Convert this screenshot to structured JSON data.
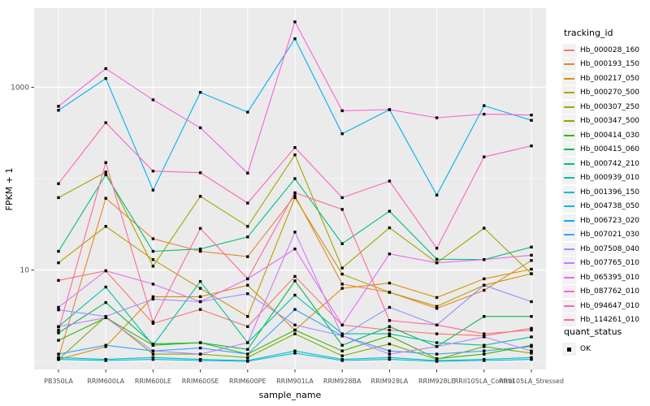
{
  "figure": {
    "background": "#FFFFFF",
    "panel_background": "#EBEBEB",
    "grid_color": "#FFFFFF",
    "tick_color": "#333333",
    "axis_text_color": "#4D4D4D",
    "title_color": "#000000",
    "legend_key_fill": "#F2F2F2",
    "point_color": "#000000"
  },
  "legend": {
    "title": "tracking_id"
  },
  "legend2": {
    "title": "quant_status",
    "items": [
      {
        "label": "OK",
        "shape": "filled-square",
        "color": "#000000"
      }
    ]
  },
  "chart_data": {
    "type": "line",
    "title": "",
    "xlabel": "sample_name",
    "ylabel": "FPKM + 1",
    "y_scale": "log10",
    "ylim": [
      1,
      7000
    ],
    "y_tick_values": [
      10,
      1000
    ],
    "y_tick_labels": [
      "10",
      "1000"
    ],
    "y_gridline_values": [
      1,
      10,
      100,
      1000
    ],
    "grid": true,
    "legend_position": "right",
    "point_shape": "filled-square",
    "categories": [
      "PB350LA",
      "RRIM600LA",
      "RRIM600LE",
      "RRIM600SE",
      "RRIM600PE",
      "RRIM901LA",
      "RRIM928BA",
      "RRIM928LA",
      "RRIM928LE",
      "RRII105LA_Control",
      "RRII105LA_Stressed"
    ],
    "series": [
      {
        "name": "Hb_000028_160",
        "color": "#F8766D",
        "values": [
          7.7,
          9.8,
          2.6,
          3.7,
          2.4,
          8.5,
          2.5,
          2.2,
          2.0,
          1.9,
          2.3
        ]
      },
      {
        "name": "Hb_000193_150",
        "color": "#EA8331",
        "values": [
          1.1,
          61,
          22,
          16,
          14,
          65,
          7.0,
          5.7,
          3.8,
          6.0,
          12.7
        ]
      },
      {
        "name": "Hb_000217_050",
        "color": "#D89000",
        "values": [
          1.05,
          1.45,
          5.1,
          5.1,
          6.8,
          2.2,
          6.3,
          7.2,
          5.0,
          8.0,
          10.2
        ]
      },
      {
        "name": "Hb_000270_500",
        "color": "#C09B00",
        "values": [
          12,
          30,
          13,
          6.3,
          3.1,
          62,
          9.0,
          5.7,
          4.0,
          6.8,
          9.1
        ]
      },
      {
        "name": "Hb_000307_250",
        "color": "#A3A500",
        "values": [
          62,
          118,
          11,
          64,
          30,
          182,
          10.5,
          29,
          12,
          28.7,
          9.1
        ]
      },
      {
        "name": "Hb_000347_500",
        "color": "#7CAE00",
        "values": [
          1.05,
          3.1,
          1.2,
          1.2,
          1.1,
          2.0,
          1.15,
          1.55,
          1.05,
          1.45,
          1.23
        ]
      },
      {
        "name": "Hb_000414_030",
        "color": "#39B600",
        "values": [
          1.7,
          3.0,
          1.5,
          1.6,
          1.2,
          2.2,
          1.3,
          1.9,
          1.07,
          1.2,
          1.5
        ]
      },
      {
        "name": "Hb_000415_060",
        "color": "#00BB4E",
        "values": [
          2.05,
          4.4,
          1.55,
          1.6,
          1.35,
          7.6,
          1.5,
          2.4,
          1.45,
          3.1,
          3.1
        ]
      },
      {
        "name": "Hb_000742_210",
        "color": "#00BF7D",
        "values": [
          16,
          110,
          16,
          17,
          23,
          100,
          19.4,
          44,
          13.1,
          13,
          17.8
        ]
      },
      {
        "name": "Hb_000939_010",
        "color": "#00C1A3",
        "values": [
          2.4,
          6.5,
          1.5,
          7.5,
          1.6,
          5.3,
          2.0,
          2.0,
          1.6,
          1.5,
          1.85
        ]
      },
      {
        "name": "Hb_001396_150",
        "color": "#00BFC4",
        "values": [
          1.1,
          1.05,
          1.1,
          1.05,
          1.02,
          1.3,
          1.05,
          1.1,
          1.02,
          1.05,
          1.1
        ]
      },
      {
        "name": "Hb_004738_050",
        "color": "#00BAE0",
        "values": [
          1.05,
          1.02,
          1.05,
          1.02,
          1.0,
          1.23,
          1.02,
          1.05,
          1.0,
          1.02,
          1.05
        ]
      },
      {
        "name": "Hb_006723_020",
        "color": "#00B0F6",
        "values": [
          560,
          1250,
          75,
          880,
          535,
          3400,
          310,
          570,
          66,
          630,
          435
        ]
      },
      {
        "name": "Hb_007021_030",
        "color": "#35A2FF",
        "values": [
          1.2,
          1.5,
          1.3,
          1.4,
          1.2,
          3.7,
          1.9,
          1.3,
          1.2,
          1.3,
          1.45
        ]
      },
      {
        "name": "Hb_007508_040",
        "color": "#9590FF",
        "values": [
          3.66,
          3.1,
          4.8,
          4.5,
          5.5,
          2.5,
          1.9,
          3.9,
          2.5,
          6.8,
          4.5
        ]
      },
      {
        "name": "Hb_007765_010",
        "color": "#C77CFF",
        "values": [
          2.4,
          3.0,
          1.3,
          1.2,
          1.6,
          26,
          1.9,
          1.2,
          1.45,
          1.85,
          1.3
        ]
      },
      {
        "name": "Hb_065395_010",
        "color": "#E76BF3",
        "values": [
          3.9,
          9.8,
          7.0,
          4.5,
          8.0,
          17,
          2.5,
          15,
          12,
          13,
          14.5
        ]
      },
      {
        "name": "Hb_087762_010",
        "color": "#FA62DB",
        "values": [
          620,
          1600,
          730,
          360,
          115,
          5200,
          554,
          570,
          464,
          508,
          497
        ]
      },
      {
        "name": "Hb_094647_010",
        "color": "#FF62BC",
        "values": [
          88,
          410,
          121,
          116,
          54,
          219,
          62,
          94,
          17.3,
          173,
          228
        ]
      },
      {
        "name": "Hb_114261_010",
        "color": "#FF6A98",
        "values": [
          2.2,
          150,
          2.7,
          28.5,
          8.0,
          70,
          46,
          2.8,
          2.5,
          2.0,
          2.2
        ]
      }
    ]
  }
}
